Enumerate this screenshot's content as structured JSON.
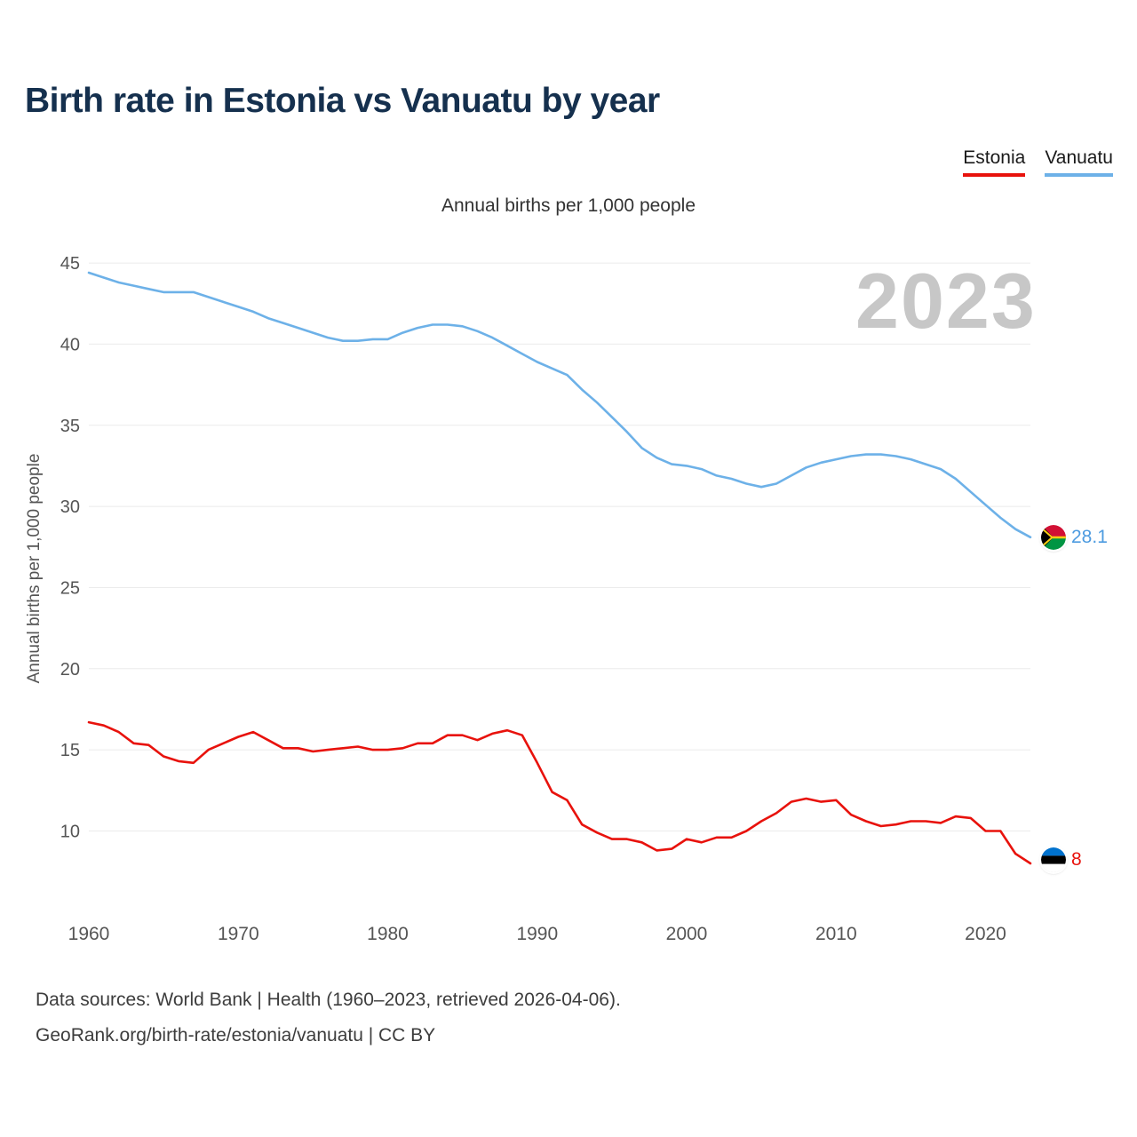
{
  "page": {
    "title": "Birth rate in Estonia vs Vanuatu by year",
    "subtitle": "Annual births per 1,000 people",
    "watermark": "2023",
    "footer_line1": "Data sources: World Bank | Health (1960–2023, retrieved 2026-04-06).",
    "footer_line2": "GeoRank.org/birth-rate/estonia/vanuatu | CC BY"
  },
  "legend": [
    {
      "label": "Estonia",
      "color": "#e8120c"
    },
    {
      "label": "Vanuatu",
      "color": "#6db1e8"
    }
  ],
  "end_labels": {
    "vanuatu_value": "28.1",
    "estonia_value": "8"
  },
  "colors": {
    "estonia_line": "#e8120c",
    "vanuatu_line": "#6db1e8",
    "grid": "#ebebeb",
    "watermark": "#c7c7c7",
    "title": "#15304e"
  },
  "chart_data": {
    "type": "line",
    "title": "Birth rate in Estonia vs Vanuatu by year",
    "subtitle": "Annual births per 1,000 people",
    "xlabel": "",
    "ylabel": "Annual births per 1,000 people",
    "x": [
      1960,
      1961,
      1962,
      1963,
      1964,
      1965,
      1966,
      1967,
      1968,
      1969,
      1970,
      1971,
      1972,
      1973,
      1974,
      1975,
      1976,
      1977,
      1978,
      1979,
      1980,
      1981,
      1982,
      1983,
      1984,
      1985,
      1986,
      1987,
      1988,
      1989,
      1990,
      1991,
      1992,
      1993,
      1994,
      1995,
      1996,
      1997,
      1998,
      1999,
      2000,
      2001,
      2002,
      2003,
      2004,
      2005,
      2006,
      2007,
      2008,
      2009,
      2010,
      2011,
      2012,
      2013,
      2014,
      2015,
      2016,
      2017,
      2018,
      2019,
      2020,
      2021,
      2022,
      2023
    ],
    "series": [
      {
        "name": "Estonia",
        "color": "#e8120c",
        "values": [
          16.7,
          16.5,
          16.1,
          15.4,
          15.3,
          14.6,
          14.3,
          14.2,
          15.0,
          15.4,
          15.8,
          16.1,
          15.6,
          15.1,
          15.1,
          14.9,
          15.0,
          15.1,
          15.2,
          15.0,
          15.0,
          15.1,
          15.4,
          15.4,
          15.9,
          15.9,
          15.6,
          16.0,
          16.2,
          15.9,
          14.2,
          12.4,
          11.9,
          10.4,
          9.9,
          9.5,
          9.5,
          9.3,
          8.8,
          8.9,
          9.5,
          9.3,
          9.6,
          9.6,
          10.0,
          10.6,
          11.1,
          11.8,
          12.0,
          11.8,
          11.9,
          11.0,
          10.6,
          10.3,
          10.4,
          10.6,
          10.6,
          10.5,
          10.9,
          10.8,
          10.0,
          10.0,
          8.6,
          8.0
        ]
      },
      {
        "name": "Vanuatu",
        "color": "#6db1e8",
        "values": [
          44.4,
          44.1,
          43.8,
          43.6,
          43.4,
          43.2,
          43.2,
          43.2,
          42.9,
          42.6,
          42.3,
          42.0,
          41.6,
          41.3,
          41.0,
          40.7,
          40.4,
          40.2,
          40.2,
          40.3,
          40.3,
          40.7,
          41.0,
          41.2,
          41.2,
          41.1,
          40.8,
          40.4,
          39.9,
          39.4,
          38.9,
          38.5,
          38.1,
          37.2,
          36.4,
          35.5,
          34.6,
          33.6,
          33.0,
          32.6,
          32.5,
          32.3,
          31.9,
          31.7,
          31.4,
          31.2,
          31.4,
          31.9,
          32.4,
          32.7,
          32.9,
          33.1,
          33.2,
          33.2,
          33.1,
          32.9,
          32.6,
          32.3,
          31.7,
          30.9,
          30.1,
          29.3,
          28.6,
          28.1
        ]
      }
    ],
    "end_values": {
      "Estonia": 8,
      "Vanuatu": 28.1
    },
    "yticks": [
      10,
      15,
      20,
      25,
      30,
      35,
      40,
      45
    ],
    "xticks": [
      1960,
      1970,
      1980,
      1990,
      2000,
      2010,
      2020
    ],
    "ylim": [
      6.5,
      46.5
    ],
    "xlim": [
      1960,
      2023
    ],
    "grid": "horizontal",
    "legend_position": "top-right",
    "watermark": "2023"
  }
}
